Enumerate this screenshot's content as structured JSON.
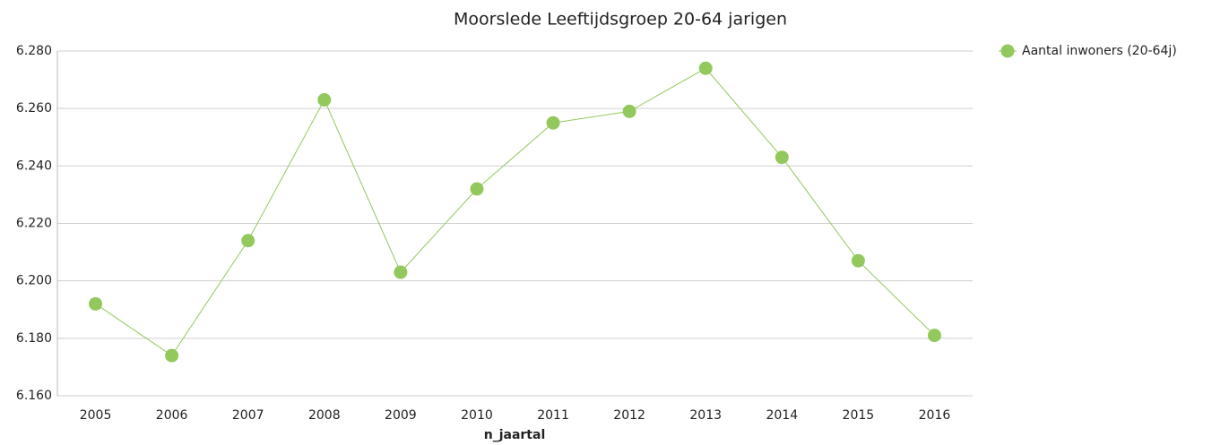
{
  "chart_data": {
    "type": "line",
    "title": "Moorslede  Leeftijdsgroep 20-64 jarigen",
    "x_label": "n_jaartal",
    "categories": [
      "2005",
      "2006",
      "2007",
      "2008",
      "2009",
      "2010",
      "2011",
      "2012",
      "2013",
      "2014",
      "2015",
      "2016"
    ],
    "series": [
      {
        "name": "Aantal inwoners  (20-64j)",
        "color": "#92c85c",
        "values": [
          6192,
          6174,
          6214,
          6263,
          6203,
          6232,
          6255,
          6259,
          6274,
          6243,
          6207,
          6181
        ]
      }
    ],
    "ylim": [
      6160,
      6280
    ],
    "yticks": [
      {
        "value": 6160,
        "label": "6.160"
      },
      {
        "value": 6180,
        "label": "6.180"
      },
      {
        "value": 6200,
        "label": "6.200"
      },
      {
        "value": 6220,
        "label": "6.220"
      },
      {
        "value": 6240,
        "label": "6.240"
      },
      {
        "value": 6260,
        "label": "6.260"
      },
      {
        "value": 6280,
        "label": "6.280"
      }
    ],
    "grid": true,
    "legend": "right"
  }
}
